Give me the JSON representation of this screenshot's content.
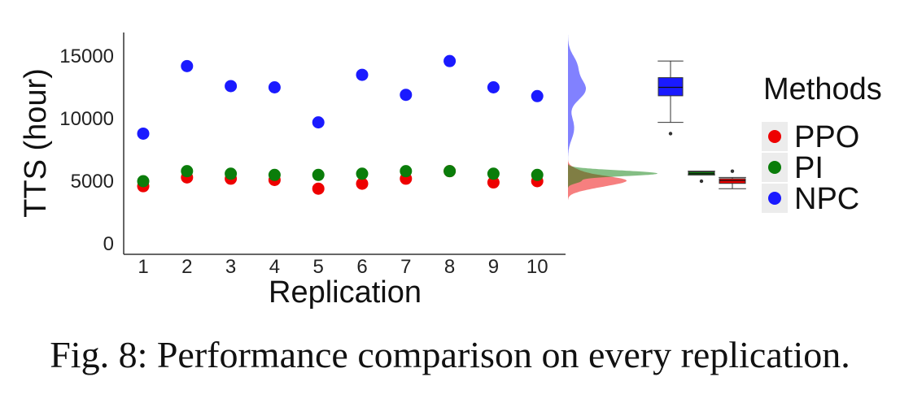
{
  "caption": "Fig. 8: Performance comparison on every replication.",
  "chart_data": {
    "type": "scatter",
    "xlabel": "Replication",
    "ylabel": "TTS (hour)",
    "x": [
      1,
      2,
      3,
      4,
      5,
      6,
      7,
      8,
      9,
      10
    ],
    "x_ticks": [
      "1",
      "2",
      "3",
      "4",
      "5",
      "6",
      "7",
      "8",
      "9",
      "10"
    ],
    "y_ticks": [
      "0",
      "5000",
      "10000",
      "15000"
    ],
    "ylim": [
      0,
      16500
    ],
    "grid": false,
    "legend": {
      "title": "Methods",
      "placement": "right",
      "items": [
        "PPO",
        "PI",
        "NPC"
      ]
    },
    "series": [
      {
        "name": "PPO",
        "color": "#ee0000",
        "values": [
          4600,
          5300,
          5200,
          5100,
          4400,
          4800,
          5200,
          5800,
          4900,
          5000
        ]
      },
      {
        "name": "PI",
        "color": "#0a7d0a",
        "values": [
          5000,
          5800,
          5600,
          5500,
          5500,
          5600,
          5800,
          5800,
          5600,
          5500
        ]
      },
      {
        "name": "NPC",
        "color": "#1a1aff",
        "values": [
          8800,
          14200,
          12600,
          12500,
          9700,
          13500,
          11900,
          14600,
          12500,
          11800
        ]
      }
    ],
    "marginal": {
      "density": true,
      "boxplot": true
    }
  }
}
